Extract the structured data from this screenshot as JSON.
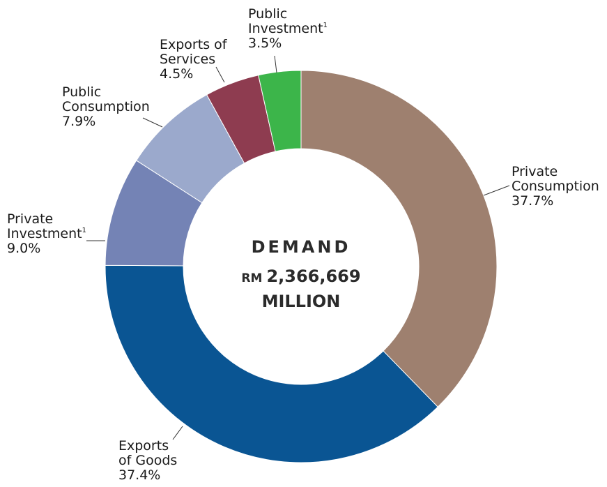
{
  "chart_data": {
    "type": "donut",
    "center": {
      "title": "DEMAND",
      "currency": "RM",
      "value": "2,366,669",
      "unit": "MILLION"
    },
    "slices": [
      {
        "key": "private_consumption",
        "label_lines": [
          "Private",
          "Consumption"
        ],
        "sup": "",
        "pct_label": "37.7%",
        "value": 37.7,
        "color": "#9e806f"
      },
      {
        "key": "exports_goods",
        "label_lines": [
          "Exports",
          "of Goods"
        ],
        "sup": "",
        "pct_label": "37.4%",
        "value": 37.4,
        "color": "#0a5593"
      },
      {
        "key": "private_investment",
        "label_lines": [
          "Private",
          "Investment"
        ],
        "sup": "1",
        "pct_label": "9.0%",
        "value": 9.0,
        "color": "#7483b5"
      },
      {
        "key": "public_consumption",
        "label_lines": [
          "Public",
          "Consumption"
        ],
        "sup": "",
        "pct_label": "7.9%",
        "value": 7.9,
        "color": "#9ba9cc"
      },
      {
        "key": "exports_services",
        "label_lines": [
          "Exports of",
          "Services"
        ],
        "sup": "",
        "pct_label": "4.5%",
        "value": 4.5,
        "color": "#8e3c50"
      },
      {
        "key": "public_investment",
        "label_lines": [
          "Public",
          "Investment"
        ],
        "sup": "1",
        "pct_label": "3.5%",
        "value": 3.5,
        "color": "#3cb54a"
      }
    ]
  }
}
